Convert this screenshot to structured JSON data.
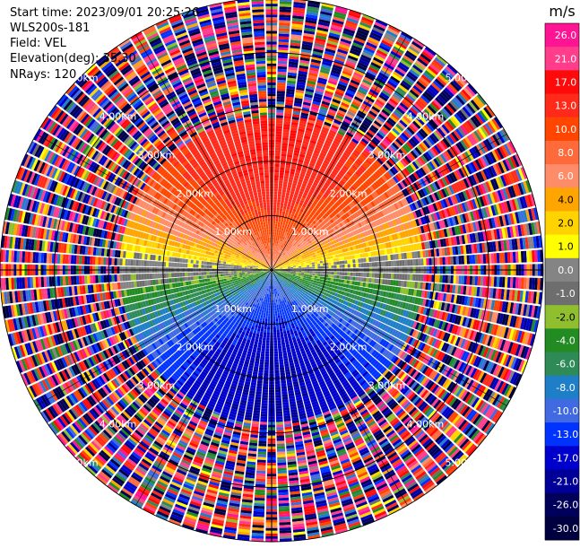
{
  "header": {
    "start_time": "Start time: 2023/09/01 20:25:26",
    "site": "WLS200s-181",
    "field": "Field: VEL",
    "elevation": "Elevation(deg): 35.30",
    "nrays": "NRays: 120"
  },
  "chart_data": {
    "type": "heatmap",
    "projection": "polar-ppi",
    "field": "VEL",
    "nrays": 120,
    "max_range_km": 5.0,
    "range_rings_km": [
      1.0,
      2.0,
      3.0,
      4.0,
      5.0
    ],
    "ring_labels": [
      "1.00km",
      "2.00km",
      "3.00km",
      "4.00km",
      "5.00km"
    ],
    "colorbar": {
      "unit": "m/s",
      "tick_labels": [
        "26.0",
        "21.0",
        "17.0",
        "13.0",
        "10.0",
        "8.0",
        "6.0",
        "4.0",
        "2.0",
        "1.0",
        "0.0",
        "-1.0",
        "-2.0",
        "-4.0",
        "-6.0",
        "-8.0",
        "-10.0",
        "-13.0",
        "-17.0",
        "-21.0",
        "-26.0",
        "-30.0"
      ],
      "colors": [
        "#ff1493",
        "#ff3d8b",
        "#ff0a0a",
        "#ff2a1a",
        "#ff4500",
        "#ff6a3a",
        "#ff8c69",
        "#ffa500",
        "#ffd300",
        "#ffff00",
        "#848484",
        "#6e6e6e",
        "#8fbf2f",
        "#228b22",
        "#2e8b57",
        "#1e7fc8",
        "#4169e1",
        "#0033ff",
        "#0000cd",
        "#000099",
        "#00005a",
        "#000040"
      ]
    },
    "wind_pattern": {
      "description_values": "Radial velocity: positive (toward red) in upper half, negative (toward blue) in lower half, near-zero along horizontal axis; beyond ~2.8 km values are noisy/random.",
      "max_positive": 17.0,
      "max_negative": -17.0,
      "clean_range_km": 2.8
    }
  }
}
